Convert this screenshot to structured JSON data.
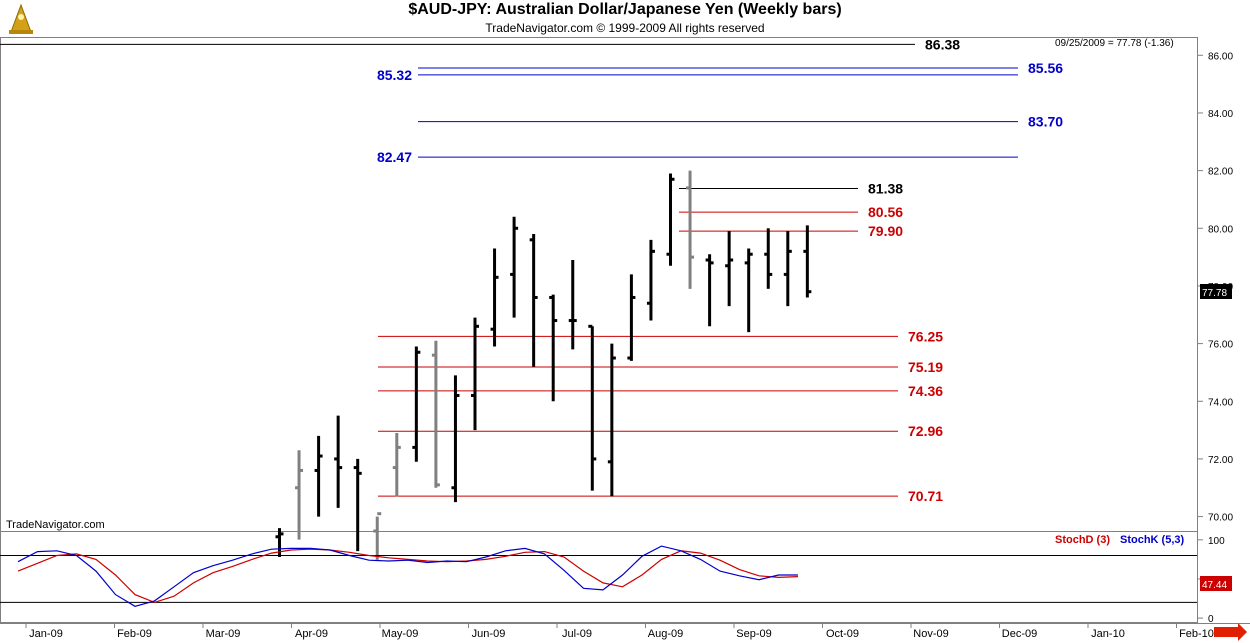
{
  "title": "$AUD-JPY:  Australian Dollar/Japanese Yen  (Weekly bars)",
  "subtitle": "TradeNavigator.com © 1999-2009 All rights reserved",
  "watermark": "TradeNavigator.com",
  "last_info": "09/25/2009 = 77.78 (-1.36)",
  "last_price": "77.78",
  "stoch_value": "47.44",
  "stoch_legend": {
    "d": "StochD (3)",
    "k": "StochK (5,3)"
  },
  "colors": {
    "black": "#000000",
    "gray": "#808080",
    "red": "#cc0000",
    "blue": "#0000cc",
    "stoch_d": "#cc0000",
    "stoch_k": "#0000cc",
    "accent": "#cc0000"
  },
  "chart_data": {
    "type": "ohlc",
    "price_axis": {
      "ylim": [
        69.5,
        86.6
      ],
      "ticks": [
        "70.00",
        "72.00",
        "74.00",
        "76.00",
        "78.00",
        "80.00",
        "82.00",
        "84.00",
        "86.00"
      ]
    },
    "stoch_axis": {
      "ylim": [
        -5,
        110
      ],
      "ticks": [
        "100",
        "50",
        "0"
      ],
      "ref_lines": [
        80,
        20
      ]
    },
    "x_ticks": [
      "Jan-09",
      "Feb-09",
      "Mar-09",
      "Apr-09",
      "May-09",
      "Jun-09",
      "Jul-09",
      "Aug-09",
      "Sep-09",
      "Oct-09",
      "Nov-09",
      "Dec-09",
      "Jan-10",
      "Feb-10"
    ],
    "bars": [
      {
        "o": 69.3,
        "h": 69.6,
        "l": 68.6,
        "c": 69.4,
        "gray": false
      },
      {
        "o": 71.0,
        "h": 72.3,
        "l": 69.2,
        "c": 71.6,
        "gray": true
      },
      {
        "o": 71.6,
        "h": 72.8,
        "l": 70.0,
        "c": 72.1,
        "gray": false
      },
      {
        "o": 72.0,
        "h": 73.5,
        "l": 70.3,
        "c": 71.7,
        "gray": false
      },
      {
        "o": 71.7,
        "h": 72.0,
        "l": 68.8,
        "c": 71.5,
        "gray": false
      },
      {
        "o": 69.5,
        "h": 70.0,
        "l": 68.5,
        "c": 70.1,
        "gray": true
      },
      {
        "o": 71.7,
        "h": 72.9,
        "l": 70.7,
        "c": 72.4,
        "gray": true
      },
      {
        "o": 72.4,
        "h": 75.9,
        "l": 71.9,
        "c": 75.7,
        "gray": false
      },
      {
        "o": 75.6,
        "h": 76.1,
        "l": 71.0,
        "c": 71.1,
        "gray": true
      },
      {
        "o": 71.0,
        "h": 74.9,
        "l": 70.5,
        "c": 74.2,
        "gray": false
      },
      {
        "o": 74.2,
        "h": 76.9,
        "l": 73.0,
        "c": 76.6,
        "gray": false
      },
      {
        "o": 76.5,
        "h": 79.3,
        "l": 75.9,
        "c": 78.3,
        "gray": false
      },
      {
        "o": 78.4,
        "h": 80.4,
        "l": 76.9,
        "c": 80.0,
        "gray": false
      },
      {
        "o": 79.6,
        "h": 79.8,
        "l": 75.2,
        "c": 77.6,
        "gray": false
      },
      {
        "o": 77.6,
        "h": 77.7,
        "l": 74.0,
        "c": 76.8,
        "gray": false
      },
      {
        "o": 76.8,
        "h": 78.9,
        "l": 75.8,
        "c": 76.8,
        "gray": false
      },
      {
        "o": 76.6,
        "h": 76.6,
        "l": 70.9,
        "c": 72.0,
        "gray": false
      },
      {
        "o": 71.9,
        "h": 76.0,
        "l": 70.7,
        "c": 75.5,
        "gray": false
      },
      {
        "o": 75.5,
        "h": 78.4,
        "l": 75.4,
        "c": 77.6,
        "gray": false
      },
      {
        "o": 77.4,
        "h": 79.6,
        "l": 76.8,
        "c": 79.2,
        "gray": false
      },
      {
        "o": 79.1,
        "h": 81.9,
        "l": 78.7,
        "c": 81.7,
        "gray": false
      },
      {
        "o": 81.4,
        "h": 82.0,
        "l": 77.9,
        "c": 79.0,
        "gray": true
      },
      {
        "o": 78.9,
        "h": 79.1,
        "l": 76.6,
        "c": 78.8,
        "gray": false
      },
      {
        "o": 78.7,
        "h": 79.9,
        "l": 77.3,
        "c": 78.9,
        "gray": false
      },
      {
        "o": 78.8,
        "h": 79.3,
        "l": 76.4,
        "c": 79.1,
        "gray": false
      },
      {
        "o": 79.1,
        "h": 80.0,
        "l": 77.9,
        "c": 78.4,
        "gray": false
      },
      {
        "o": 78.4,
        "h": 79.9,
        "l": 77.3,
        "c": 79.2,
        "gray": false
      },
      {
        "o": 79.2,
        "h": 80.1,
        "l": 77.6,
        "c": 77.8,
        "gray": false
      }
    ],
    "hlines": [
      {
        "label": "86.38",
        "value": 86.38,
        "color": "black",
        "label_side": "right"
      },
      {
        "label": "85.56",
        "value": 85.56,
        "color": "blue",
        "label_side": "right"
      },
      {
        "label": "85.32",
        "value": 85.32,
        "color": "blue",
        "label_side": "left"
      },
      {
        "label": "83.70",
        "value": 83.7,
        "color": "blue",
        "label_side": "right"
      },
      {
        "label": "82.47",
        "value": 82.47,
        "color": "blue",
        "label_side": "left"
      },
      {
        "label": "81.38",
        "value": 81.38,
        "color": "black",
        "label_side": "right"
      },
      {
        "label": "80.56",
        "value": 80.56,
        "color": "red",
        "label_side": "right"
      },
      {
        "label": "79.90",
        "value": 79.9,
        "color": "red",
        "label_side": "right"
      },
      {
        "label": "76.25",
        "value": 76.25,
        "color": "red",
        "label_side": "right"
      },
      {
        "label": "75.19",
        "value": 75.19,
        "color": "red",
        "label_side": "right"
      },
      {
        "label": "74.36",
        "value": 74.36,
        "color": "red",
        "label_side": "right"
      },
      {
        "label": "72.96",
        "value": 72.96,
        "color": "red",
        "label_side": "right"
      },
      {
        "label": "70.71",
        "value": 70.71,
        "color": "red",
        "label_side": "right"
      }
    ],
    "stoch_k": [
      72,
      85,
      86,
      80,
      60,
      30,
      15,
      22,
      40,
      58,
      67,
      74,
      82,
      88,
      89,
      89,
      87,
      80,
      74,
      73,
      74,
      71,
      73,
      72,
      78,
      86,
      89,
      82,
      61,
      38,
      36,
      55,
      79,
      92,
      86,
      75,
      60,
      54,
      49,
      55,
      55
    ],
    "stoch_d": [
      60,
      70,
      80,
      82,
      75,
      55,
      30,
      20,
      28,
      45,
      58,
      66,
      75,
      83,
      87,
      88,
      87,
      84,
      80,
      77,
      75,
      73,
      72,
      73,
      75,
      79,
      84,
      85,
      78,
      60,
      45,
      40,
      55,
      75,
      86,
      83,
      74,
      62,
      54,
      52,
      53
    ]
  }
}
